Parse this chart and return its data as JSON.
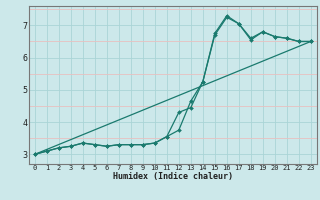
{
  "xlabel": "Humidex (Indice chaleur)",
  "background_color": "#cce8ea",
  "grid_major_color": "#aad4d6",
  "grid_minor_color": "#e8c0c0",
  "line_color": "#1a7a6e",
  "xlim": [
    -0.5,
    23.5
  ],
  "ylim": [
    2.7,
    7.6
  ],
  "xticks": [
    0,
    1,
    2,
    3,
    4,
    5,
    6,
    7,
    8,
    9,
    10,
    11,
    12,
    13,
    14,
    15,
    16,
    17,
    18,
    19,
    20,
    21,
    22,
    23
  ],
  "yticks": [
    3,
    4,
    5,
    6,
    7
  ],
  "series1_x": [
    0,
    1,
    2,
    3,
    4,
    5,
    6,
    7,
    8,
    9,
    10,
    11,
    12,
    13,
    14,
    15,
    16,
    17,
    18,
    19,
    20,
    21,
    22,
    23
  ],
  "series1_y": [
    3.0,
    3.1,
    3.2,
    3.25,
    3.35,
    3.3,
    3.25,
    3.3,
    3.3,
    3.3,
    3.35,
    3.55,
    3.75,
    4.65,
    5.25,
    6.75,
    7.3,
    7.05,
    6.55,
    6.8,
    6.65,
    6.6,
    6.5,
    6.5
  ],
  "series2_x": [
    0,
    1,
    2,
    3,
    4,
    5,
    6,
    7,
    8,
    9,
    10,
    11,
    12,
    13,
    14,
    15,
    16,
    17,
    18,
    19,
    20,
    21,
    22,
    23
  ],
  "series2_y": [
    3.0,
    3.1,
    3.2,
    3.25,
    3.35,
    3.3,
    3.25,
    3.3,
    3.3,
    3.3,
    3.35,
    3.55,
    4.3,
    4.45,
    5.25,
    6.7,
    7.25,
    7.05,
    6.6,
    6.8,
    6.65,
    6.6,
    6.5,
    6.5
  ],
  "series3_x": [
    0,
    23
  ],
  "series3_y": [
    3.0,
    6.5
  ]
}
